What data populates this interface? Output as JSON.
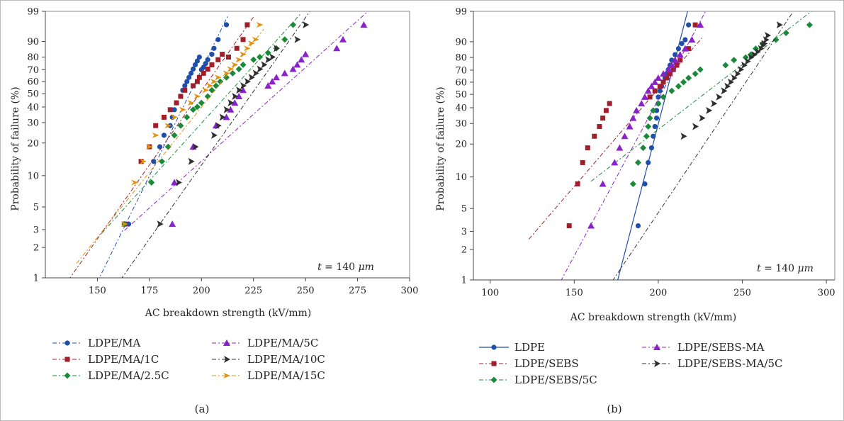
{
  "chart_data": [
    {
      "type": "scatter",
      "panel_label": "(a)",
      "xlabel": "AC breakdown strength (kV/mm)",
      "ylabel": "Probability of failure (%)",
      "xlim": [
        125,
        300
      ],
      "ylim": [
        1,
        99
      ],
      "yscale": "weibull",
      "xticks": [
        150,
        175,
        200,
        225,
        250,
        275,
        300
      ],
      "yticks": [
        1,
        2,
        3,
        5,
        10,
        20,
        30,
        40,
        50,
        60,
        70,
        80,
        90,
        99
      ],
      "annotation": {
        "var": "t",
        "eq": " = 140 ",
        "unit": "μm"
      },
      "legend_position": "bottom",
      "legend_columns": 2,
      "series": [
        {
          "name": "LDPE/MA",
          "color": "#1f4fa8",
          "marker": "circle",
          "x": [
            165,
            177,
            180,
            182,
            185,
            186,
            187,
            188,
            190,
            191,
            192,
            193,
            194,
            195,
            196,
            197,
            198,
            199,
            200,
            201,
            202,
            203,
            205,
            206,
            208,
            212
          ],
          "y": [
            3.4,
            13.6,
            18.5,
            23.4,
            28.3,
            33.2,
            38.1,
            43.0,
            47.9,
            52.8,
            56.5,
            60.0,
            63.5,
            67.0,
            70.5,
            74.0,
            77.0,
            80.0,
            70.0,
            72.0,
            75.0,
            78.0,
            82.0,
            86.0,
            91.0,
            96.6
          ],
          "fit_x": [
            150,
            213
          ]
        },
        {
          "name": "LDPE/MA/1C",
          "color": "#a01f2a",
          "marker": "square",
          "x": [
            163,
            171,
            175,
            178,
            182,
            185,
            188,
            190,
            192,
            196,
            198,
            199,
            201,
            203,
            205,
            208,
            210,
            213,
            217,
            220,
            222
          ],
          "y": [
            3.4,
            13.6,
            18.5,
            28.3,
            33.2,
            38.1,
            43.0,
            47.9,
            52.8,
            56.5,
            60.0,
            63.5,
            67.0,
            70.5,
            74.0,
            78.0,
            82.0,
            80.0,
            86.0,
            91.0,
            96.6
          ],
          "fit_x": [
            136,
            225
          ]
        },
        {
          "name": "LDPE/MA/2.5C",
          "color": "#1a8a3a",
          "marker": "diamond",
          "x": [
            163,
            176,
            181,
            184,
            187,
            190,
            193,
            196,
            198,
            200,
            203,
            205,
            207,
            209,
            212,
            215,
            218,
            220,
            225,
            228,
            232,
            236,
            240,
            244
          ],
          "y": [
            3.4,
            8.6,
            13.6,
            18.5,
            23.4,
            28.3,
            33.2,
            38.1,
            40.0,
            43.0,
            47.9,
            52.8,
            56.5,
            60.0,
            63.5,
            67.0,
            70.5,
            74.0,
            78.0,
            80.0,
            83.0,
            86.0,
            91.0,
            96.6
          ],
          "fit_x": [
            152,
            248
          ]
        },
        {
          "name": "LDPE/MA/5C",
          "color": "#8a22c9",
          "marker": "triangle",
          "x": [
            186,
            187,
            196,
            207,
            212,
            214,
            216,
            218,
            220,
            232,
            234,
            236,
            240,
            244,
            246,
            248,
            250,
            265,
            268,
            278
          ],
          "y": [
            3.4,
            8.6,
            18.5,
            28.3,
            33.2,
            38.1,
            43.0,
            47.9,
            52.8,
            56.5,
            60.0,
            63.5,
            67.0,
            70.5,
            74.0,
            78.0,
            82.0,
            86.0,
            91.0,
            96.6
          ],
          "fit_x": [
            163,
            280
          ]
        },
        {
          "name": "LDPE/MA/10C",
          "color": "#2f2f2f",
          "marker": "arrow",
          "x": [
            180,
            189,
            195,
            197,
            206,
            208,
            210,
            212,
            214,
            216,
            218,
            220,
            222,
            224,
            226,
            228,
            230,
            232,
            234,
            236,
            246,
            250
          ],
          "y": [
            3.4,
            8.6,
            13.6,
            18.5,
            23.4,
            28.3,
            33.2,
            38.1,
            43.0,
            47.9,
            52.8,
            56.5,
            60.0,
            63.5,
            67.0,
            70.5,
            74.0,
            78.0,
            80.0,
            86.0,
            91.0,
            96.6
          ],
          "fit_x": [
            153,
            252
          ]
        },
        {
          "name": "LDPE/MA/15C",
          "color": "#e0920f",
          "marker": "star",
          "x": [
            163,
            168,
            172,
            175,
            178,
            184,
            187,
            191,
            195,
            198,
            202,
            204,
            206,
            208,
            212,
            214,
            216,
            218,
            220,
            222,
            224,
            226,
            228
          ],
          "y": [
            3.4,
            8.6,
            13.6,
            18.5,
            23.4,
            28.3,
            33.2,
            38.1,
            43.0,
            47.9,
            52.8,
            56.5,
            60.0,
            63.5,
            67.0,
            70.5,
            74.0,
            78.0,
            82.0,
            86.0,
            89.0,
            91.0,
            96.6
          ],
          "fit_x": [
            140,
            230
          ]
        }
      ]
    },
    {
      "type": "scatter",
      "panel_label": "(b)",
      "xlabel": "AC breakdown strength (kV/mm)",
      "ylabel": "Probability of failure (%)",
      "xlim": [
        90,
        305
      ],
      "ylim": [
        1,
        99
      ],
      "yscale": "weibull",
      "xticks": [
        100,
        150,
        200,
        250,
        300
      ],
      "yticks": [
        1,
        2,
        3,
        5,
        10,
        20,
        30,
        40,
        50,
        60,
        70,
        80,
        90,
        99
      ],
      "annotation": {
        "var": "t",
        "eq": " = 140 ",
        "unit": "μm"
      },
      "legend_position": "bottom",
      "legend_columns": 2,
      "series": [
        {
          "name": "LDPE",
          "color": "#1f4fa8",
          "marker": "circle",
          "x": [
            188,
            192,
            194,
            196,
            197,
            198,
            199,
            199,
            200,
            200,
            201,
            202,
            203,
            204,
            205,
            206,
            207,
            208,
            210,
            212,
            214,
            216,
            218
          ],
          "y": [
            3.4,
            8.6,
            13.6,
            18.5,
            23.4,
            28.3,
            33.2,
            38.1,
            43.0,
            47.9,
            52.8,
            56.5,
            60.0,
            63.5,
            67.0,
            70.5,
            74.0,
            78.0,
            82.0,
            86.0,
            89.0,
            91.0,
            96.6
          ],
          "fit_x": [
            172,
            220
          ],
          "fit_style": "solid"
        },
        {
          "name": "LDPE/SEBS",
          "color": "#a01f2a",
          "marker": "square",
          "x": [
            147,
            152,
            155,
            158,
            162,
            165,
            167,
            169,
            171,
            195,
            198,
            201,
            203,
            205,
            207,
            209,
            211,
            213,
            218,
            222
          ],
          "y": [
            3.4,
            8.6,
            13.6,
            18.5,
            23.4,
            28.3,
            33.2,
            38.1,
            43.0,
            47.9,
            52.8,
            56.5,
            60.0,
            63.5,
            67.0,
            70.5,
            74.0,
            78.0,
            86.0,
            96.6
          ],
          "fit_x": [
            123,
            226
          ]
        },
        {
          "name": "LDPE/SEBS/5C",
          "color": "#1a8a3a",
          "marker": "diamond",
          "x": [
            185,
            188,
            191,
            193,
            194,
            195,
            197,
            200,
            203,
            208,
            212,
            215,
            218,
            222,
            225,
            240,
            245,
            252,
            255,
            258,
            262,
            270,
            276,
            290
          ],
          "y": [
            8.6,
            13.6,
            18.5,
            23.4,
            28.3,
            33.2,
            38.1,
            43.0,
            47.9,
            52.8,
            56.5,
            60.0,
            63.5,
            67.0,
            70.5,
            74.0,
            78.0,
            80.0,
            82.0,
            86.0,
            89.0,
            91.0,
            94.0,
            96.6
          ],
          "fit_x": [
            160,
            292
          ]
        },
        {
          "name": "LDPE/SEBS-MA",
          "color": "#8a22c9",
          "marker": "triangle",
          "x": [
            160,
            167,
            174,
            177,
            180,
            183,
            185,
            187,
            190,
            192,
            194,
            196,
            198,
            200,
            203,
            206,
            208,
            210,
            213,
            216,
            220,
            225
          ],
          "y": [
            3.4,
            8.6,
            13.6,
            18.5,
            23.4,
            28.3,
            33.2,
            38.1,
            43.0,
            47.9,
            52.8,
            56.5,
            60.0,
            63.5,
            67.0,
            70.5,
            74.0,
            78.0,
            82.0,
            86.0,
            91.0,
            96.6
          ],
          "fit_x": [
            128,
            228
          ]
        },
        {
          "name": "LDPE/SEBS-MA/5C",
          "color": "#2f2f2f",
          "marker": "arrow",
          "x": [
            215,
            222,
            226,
            230,
            233,
            236,
            239,
            241,
            243,
            245,
            247,
            249,
            251,
            253,
            255,
            257,
            259,
            261,
            262,
            263,
            264,
            265,
            272
          ],
          "y": [
            23.4,
            28.3,
            33.2,
            38.1,
            43.0,
            47.9,
            52.8,
            56.5,
            60.0,
            63.5,
            67.0,
            70.5,
            74.0,
            77.0,
            80.0,
            82.0,
            84.0,
            86.0,
            88.0,
            89.0,
            91.0,
            93.0,
            96.6
          ],
          "fit_x": [
            130,
            280
          ]
        }
      ]
    }
  ]
}
